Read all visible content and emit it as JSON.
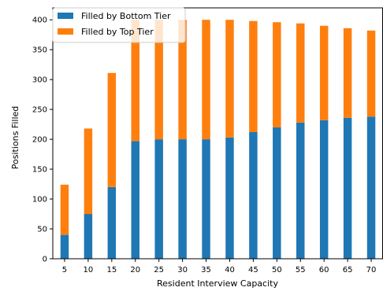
{
  "chart_data": {
    "type": "bar",
    "stacked": true,
    "categories": [
      "5",
      "10",
      "15",
      "20",
      "25",
      "30",
      "35",
      "40",
      "45",
      "50",
      "55",
      "60",
      "65",
      "70"
    ],
    "series": [
      {
        "name": "Filled by Bottom Tier",
        "color": "#1f77b4",
        "values": [
          40,
          75,
          120,
          197,
          200,
          200,
          200,
          203,
          212,
          220,
          228,
          232,
          236,
          238
        ]
      },
      {
        "name": "Filled by Top Tier",
        "color": "#ff7f0e",
        "values": [
          84,
          143,
          191,
          203,
          200,
          200,
          200,
          197,
          186,
          176,
          166,
          158,
          150,
          144
        ]
      }
    ],
    "xlabel": "Resident Interview Capacity",
    "ylabel": "Positions Filled",
    "ylim": [
      0,
      420
    ],
    "yticks": [
      0,
      50,
      100,
      150,
      200,
      250,
      300,
      350,
      400
    ],
    "legend_position": "top-left",
    "grid": false
  }
}
